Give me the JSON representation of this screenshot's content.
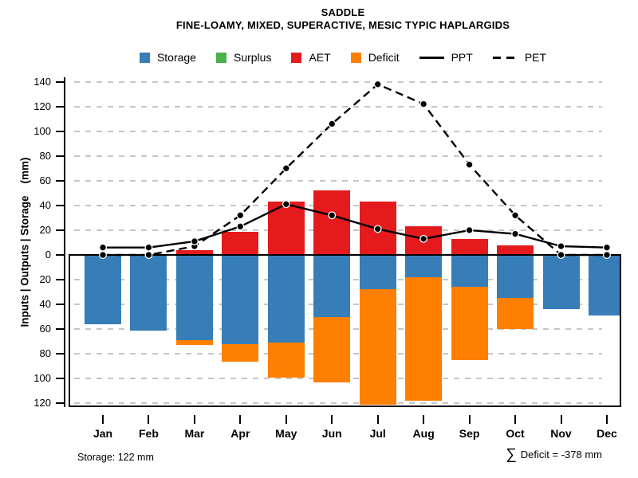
{
  "header": {
    "title": "SADDLE",
    "subtitle": "FINE-LOAMY, MIXED, SUPERACTIVE, MESIC TYPIC HAPLARGIDS"
  },
  "legend": {
    "items": [
      {
        "label": "Storage",
        "swatch": "square",
        "color": "#377EB8"
      },
      {
        "label": "Surplus",
        "swatch": "square",
        "color": "#4DAF4A"
      },
      {
        "label": "AET",
        "swatch": "square",
        "color": "#E41A1C"
      },
      {
        "label": "Deficit",
        "swatch": "square",
        "color": "#FF7F00"
      },
      {
        "label": "PPT",
        "swatch": "line-solid",
        "color": "#000000"
      },
      {
        "label": "PET",
        "swatch": "line-dashed",
        "color": "#000000"
      }
    ]
  },
  "chart_data": {
    "type": "composite bar+line water balance",
    "categories": [
      "Jan",
      "Feb",
      "Mar",
      "Apr",
      "May",
      "Jun",
      "Jul",
      "Aug",
      "Sep",
      "Oct",
      "Nov",
      "Dec"
    ],
    "ylabel": "Inputs | Outputs | Storage    (mm)",
    "y_tick_values": [
      140,
      120,
      100,
      80,
      60,
      40,
      20,
      0,
      -20,
      -40,
      -60,
      -80,
      -100,
      -120
    ],
    "y_tick_labels_absolute": true,
    "ylim": [
      -123,
      144
    ],
    "grid": "horizontal dashed every 20 mm",
    "legend_position": "top center",
    "series": [
      {
        "name": "AET",
        "type": "bar",
        "direction": "up",
        "color": "#E41A1C",
        "values": [
          0,
          0,
          4,
          19,
          43,
          52,
          43,
          23,
          13,
          8,
          0,
          0
        ]
      },
      {
        "name": "Surplus",
        "type": "bar",
        "direction": "up",
        "color": "#4DAF4A",
        "values": [
          0,
          0,
          0,
          0,
          0,
          0,
          0,
          0,
          0,
          0,
          0,
          0
        ]
      },
      {
        "name": "Storage",
        "type": "bar",
        "direction": "down",
        "color": "#377EB8",
        "values": [
          56,
          61,
          69,
          72,
          71,
          50,
          28,
          18,
          26,
          35,
          44,
          49
        ]
      },
      {
        "name": "Deficit",
        "type": "bar",
        "direction": "down",
        "stacked_below": "Storage",
        "color": "#FF7F00",
        "values": [
          0,
          0,
          4,
          14,
          28,
          53,
          93,
          100,
          59,
          25,
          0,
          0
        ]
      },
      {
        "name": "PPT",
        "type": "line",
        "style": "solid",
        "color": "#000000",
        "marker": "filled-circle",
        "values": [
          6,
          6,
          11,
          23,
          41,
          32,
          21,
          13,
          20,
          17,
          7,
          6
        ]
      },
      {
        "name": "PET",
        "type": "line",
        "style": "dashed",
        "color": "#000000",
        "marker": "filled-circle",
        "values": [
          0,
          0,
          7,
          32,
          70,
          106,
          138,
          122,
          73,
          32,
          0,
          0
        ]
      }
    ],
    "annotations": [
      "Storage: 122 mm",
      "∑ Deficit = -378 mm"
    ]
  },
  "footer": {
    "storage_text": "Storage: 122 mm",
    "deficit_sigma": "∑",
    "deficit_text": "Deficit = -378 mm"
  },
  "colors": {
    "storage": "#377EB8",
    "surplus": "#4DAF4A",
    "aet": "#E41A1C",
    "deficit": "#FF7F00",
    "line": "#000000",
    "gridline": "#C6C6C6"
  }
}
